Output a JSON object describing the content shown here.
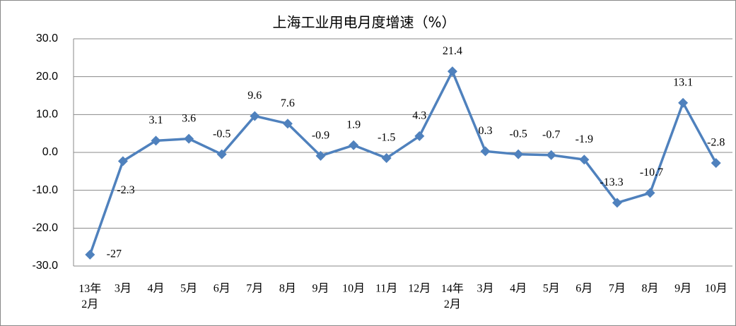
{
  "chart_data": {
    "type": "line",
    "title": "上海工业用电月度增速（%）",
    "categories": [
      "13年\n2月",
      "3月",
      "4月",
      "5月",
      "6月",
      "7月",
      "8月",
      "9月",
      "10月",
      "11月",
      "12月",
      "14年\n2月",
      "3月",
      "4月",
      "5月",
      "6月",
      "7月",
      "8月",
      "9月",
      "10月"
    ],
    "series": [
      {
        "color": "#4f81bd",
        "values": [
          -27,
          -2.3,
          3.1,
          3.6,
          -0.5,
          9.6,
          7.6,
          -0.9,
          1.9,
          -1.5,
          4.3,
          21.4,
          0.3,
          -0.5,
          -0.7,
          -1.9,
          -13.3,
          -10.7,
          13.1,
          -2.8
        ]
      }
    ],
    "ylim": [
      -30,
      30
    ],
    "yticks": [
      {
        "value": -30,
        "label": "-30.0"
      },
      {
        "value": -20,
        "label": "-20.0"
      },
      {
        "value": -10,
        "label": "-10.0"
      },
      {
        "value": 0,
        "label": "0.0"
      },
      {
        "value": 10,
        "label": "10.0"
      },
      {
        "value": 20,
        "label": "20.0"
      },
      {
        "value": 30,
        "label": "30.0"
      }
    ],
    "grid": true
  }
}
